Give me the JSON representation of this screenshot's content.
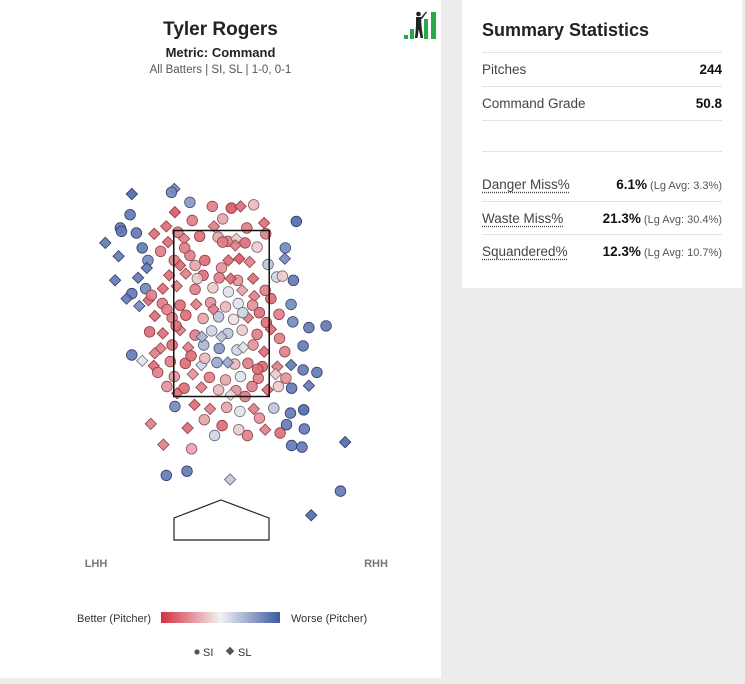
{
  "header": {
    "title": "Tyler Rogers",
    "metric": "Metric: Command",
    "filter": "All Batters | SI, SL | 1-0, 0-1"
  },
  "summary": {
    "title": "Summary Statistics",
    "rows": [
      {
        "label": "Pitches",
        "value": "244"
      },
      {
        "label": "Command Grade",
        "value": "50.8"
      }
    ],
    "miss_rows": [
      {
        "label": "Danger Miss%",
        "value": "6.1%",
        "avg": "(Lg Avg: 3.3%)"
      },
      {
        "label": "Waste Miss%",
        "value": "21.3%",
        "avg": "(Lg Avg: 30.4%)"
      },
      {
        "label": "Squandered%",
        "value": "12.3%",
        "avg": "(Lg Avg: 10.7%)"
      }
    ]
  },
  "colors": {
    "better": "#d32f3f",
    "neutral": "#f2f2f2",
    "worse": "#3b5aa4",
    "logo_green": "#29a847"
  },
  "chart_data": {
    "type": "scatter",
    "x_range": [
      -2.2,
      2.2
    ],
    "y_range": [
      -0.6,
      4.8
    ],
    "strike_zone": {
      "x": [
        -0.83,
        0.83
      ],
      "y": [
        1.5,
        3.5
      ]
    },
    "side_labels": {
      "left": "LHH",
      "right": "RHH"
    },
    "color_scale": {
      "low_label": "Better (Pitcher)",
      "high_label": "Worse (Pitcher)",
      "range": [
        -1,
        1
      ]
    },
    "legend": [
      {
        "name": "SI",
        "marker": "circle"
      },
      {
        "name": "SL",
        "marker": "diamond"
      }
    ],
    "pitches": [
      [
        -1.56,
        3.94,
        1,
        0.9
      ],
      [
        -0.82,
        4.0,
        1,
        0.7
      ],
      [
        -0.87,
        3.96,
        0,
        0.7
      ],
      [
        -1.76,
        3.53,
        0,
        0.8
      ],
      [
        -1.74,
        3.49,
        0,
        0.8
      ],
      [
        -0.55,
        3.84,
        0,
        0.6
      ],
      [
        -0.16,
        3.79,
        0,
        -0.6
      ],
      [
        0.17,
        3.77,
        0,
        -0.8
      ],
      [
        0.33,
        3.79,
        1,
        -0.7
      ],
      [
        0.56,
        3.81,
        0,
        -0.3
      ],
      [
        1.3,
        3.61,
        0,
        0.9
      ],
      [
        0.44,
        3.53,
        0,
        -0.6
      ],
      [
        -0.13,
        3.55,
        1,
        -0.6
      ],
      [
        0.74,
        3.59,
        1,
        -0.7
      ],
      [
        -0.76,
        3.48,
        0,
        -0.6
      ],
      [
        -0.93,
        3.36,
        1,
        -0.7
      ],
      [
        -0.65,
        3.4,
        1,
        -0.6
      ],
      [
        -0.38,
        3.43,
        0,
        -0.7
      ],
      [
        -0.06,
        3.42,
        0,
        -0.4
      ],
      [
        0.11,
        3.37,
        0,
        -0.6
      ],
      [
        0.41,
        3.35,
        0,
        -0.7
      ],
      [
        0.26,
        3.4,
        1,
        -0.2
      ],
      [
        0.77,
        3.46,
        0,
        -0.6
      ],
      [
        -2.02,
        3.35,
        1,
        0.8
      ],
      [
        -1.38,
        3.29,
        0,
        0.8
      ],
      [
        -1.06,
        3.25,
        0,
        -0.6
      ],
      [
        -1.28,
        3.14,
        0,
        0.7
      ],
      [
        -0.82,
        3.14,
        0,
        -0.6
      ],
      [
        -0.55,
        3.2,
        0,
        -0.6
      ],
      [
        -0.29,
        3.14,
        0,
        -0.7
      ],
      [
        0.12,
        3.14,
        1,
        -0.7
      ],
      [
        0.31,
        3.16,
        1,
        -0.8
      ],
      [
        -0.72,
        3.08,
        1,
        -0.7
      ],
      [
        -0.46,
        3.08,
        0,
        -0.4
      ],
      [
        0.0,
        3.05,
        0,
        -0.5
      ],
      [
        0.49,
        3.12,
        1,
        -0.6
      ],
      [
        0.81,
        3.09,
        0,
        0.3
      ],
      [
        1.1,
        3.16,
        1,
        0.7
      ],
      [
        -1.79,
        3.19,
        1,
        0.8
      ],
      [
        -0.91,
        2.96,
        1,
        -0.7
      ],
      [
        -0.62,
        2.98,
        1,
        -0.6
      ],
      [
        -0.32,
        2.96,
        0,
        -0.7
      ],
      [
        -0.04,
        2.93,
        0,
        -0.6
      ],
      [
        0.28,
        2.9,
        0,
        -0.5
      ],
      [
        0.55,
        2.92,
        1,
        -0.7
      ],
      [
        0.96,
        2.94,
        0,
        0.2
      ],
      [
        -1.02,
        2.8,
        1,
        -0.7
      ],
      [
        -0.78,
        2.83,
        1,
        -0.6
      ],
      [
        -0.46,
        2.79,
        0,
        -0.6
      ],
      [
        -0.15,
        2.81,
        0,
        -0.2
      ],
      [
        0.12,
        2.76,
        0,
        0.1
      ],
      [
        0.36,
        2.78,
        1,
        -0.4
      ],
      [
        0.57,
        2.71,
        1,
        -0.6
      ],
      [
        1.06,
        2.95,
        0,
        -0.2
      ],
      [
        1.25,
        2.9,
        0,
        0.8
      ],
      [
        -1.56,
        2.74,
        0,
        0.8
      ],
      [
        -1.32,
        2.8,
        0,
        0.7
      ],
      [
        -1.27,
        2.66,
        1,
        -0.7
      ],
      [
        -1.03,
        2.62,
        0,
        -0.6
      ],
      [
        -0.72,
        2.6,
        0,
        -0.7
      ],
      [
        -0.44,
        2.61,
        1,
        -0.6
      ],
      [
        -0.19,
        2.63,
        0,
        -0.5
      ],
      [
        0.07,
        2.58,
        0,
        -0.3
      ],
      [
        0.29,
        2.62,
        0,
        0.1
      ],
      [
        0.54,
        2.6,
        0,
        -0.5
      ],
      [
        0.86,
        2.68,
        0,
        -0.7
      ],
      [
        1.21,
        2.61,
        0,
        0.7
      ],
      [
        -1.65,
        2.68,
        1,
        0.8
      ],
      [
        -1.43,
        2.59,
        1,
        0.7
      ],
      [
        -1.16,
        2.47,
        1,
        -0.7
      ],
      [
        -0.86,
        2.45,
        0,
        -0.6
      ],
      [
        -0.62,
        2.48,
        0,
        -0.7
      ],
      [
        -0.32,
        2.44,
        0,
        -0.4
      ],
      [
        -0.05,
        2.46,
        0,
        0.3
      ],
      [
        0.21,
        2.43,
        0,
        -0.1
      ],
      [
        0.46,
        2.45,
        1,
        -0.6
      ],
      [
        0.78,
        2.39,
        0,
        -0.7
      ],
      [
        1.0,
        2.49,
        0,
        -0.6
      ],
      [
        -1.25,
        2.28,
        0,
        -0.7
      ],
      [
        -1.02,
        2.26,
        1,
        -0.7
      ],
      [
        -0.72,
        2.3,
        1,
        -0.6
      ],
      [
        -0.46,
        2.24,
        0,
        -0.6
      ],
      [
        -0.17,
        2.29,
        0,
        0.2
      ],
      [
        0.11,
        2.26,
        0,
        0.3
      ],
      [
        0.36,
        2.3,
        0,
        -0.2
      ],
      [
        0.62,
        2.25,
        0,
        -0.6
      ],
      [
        0.86,
        2.31,
        1,
        -0.7
      ],
      [
        1.52,
        2.33,
        0,
        0.8
      ],
      [
        1.82,
        2.35,
        0,
        0.8
      ],
      [
        -0.86,
        2.12,
        0,
        -0.7
      ],
      [
        -0.58,
        2.09,
        1,
        -0.6
      ],
      [
        -0.31,
        2.12,
        0,
        0.4
      ],
      [
        -0.04,
        2.08,
        0,
        0.6
      ],
      [
        0.27,
        2.06,
        0,
        0.2
      ],
      [
        0.55,
        2.12,
        0,
        -0.5
      ],
      [
        0.74,
        2.04,
        1,
        -0.7
      ],
      [
        1.1,
        2.04,
        0,
        -0.6
      ],
      [
        1.42,
        2.11,
        0,
        0.8
      ],
      [
        -1.56,
        2.0,
        0,
        0.8
      ],
      [
        -1.38,
        1.93,
        1,
        0.1
      ],
      [
        -1.18,
        1.87,
        1,
        -0.7
      ],
      [
        -0.89,
        1.92,
        0,
        -0.6
      ],
      [
        -0.63,
        1.9,
        0,
        -0.7
      ],
      [
        -0.35,
        1.88,
        1,
        0.2
      ],
      [
        -0.08,
        1.91,
        0,
        0.5
      ],
      [
        0.23,
        1.89,
        0,
        -0.3
      ],
      [
        0.46,
        1.9,
        0,
        -0.6
      ],
      [
        0.71,
        1.86,
        0,
        -0.7
      ],
      [
        0.97,
        1.86,
        1,
        -0.6
      ],
      [
        1.21,
        1.88,
        1,
        0.8
      ],
      [
        -1.11,
        1.79,
        0,
        -0.6
      ],
      [
        -0.82,
        1.74,
        0,
        -0.5
      ],
      [
        -0.5,
        1.77,
        1,
        -0.5
      ],
      [
        -0.21,
        1.73,
        0,
        -0.6
      ],
      [
        0.07,
        1.7,
        0,
        -0.4
      ],
      [
        0.33,
        1.74,
        0,
        0.1
      ],
      [
        0.64,
        1.72,
        0,
        -0.6
      ],
      [
        0.94,
        1.77,
        1,
        -0.2
      ],
      [
        1.66,
        1.79,
        0,
        0.8
      ],
      [
        -0.65,
        1.6,
        0,
        -0.7
      ],
      [
        -0.35,
        1.61,
        1,
        -0.6
      ],
      [
        -0.05,
        1.58,
        0,
        -0.3
      ],
      [
        0.25,
        1.57,
        0,
        -0.5
      ],
      [
        0.53,
        1.62,
        0,
        -0.6
      ],
      [
        0.8,
        1.58,
        1,
        -0.7
      ],
      [
        0.99,
        1.62,
        0,
        -0.2
      ],
      [
        1.22,
        1.6,
        0,
        0.8
      ],
      [
        1.52,
        1.63,
        1,
        0.8
      ],
      [
        -0.81,
        1.38,
        0,
        0.7
      ],
      [
        -0.47,
        1.4,
        1,
        -0.7
      ],
      [
        -0.2,
        1.35,
        1,
        -0.6
      ],
      [
        0.09,
        1.37,
        0,
        -0.4
      ],
      [
        0.32,
        1.32,
        0,
        0.1
      ],
      [
        0.56,
        1.35,
        1,
        -0.6
      ],
      [
        0.91,
        1.36,
        0,
        0.3
      ],
      [
        1.2,
        1.3,
        0,
        0.8
      ],
      [
        1.43,
        1.34,
        0,
        0.9
      ],
      [
        -1.23,
        1.17,
        1,
        -0.6
      ],
      [
        -0.59,
        1.12,
        1,
        -0.7
      ],
      [
        0.01,
        1.15,
        0,
        -0.7
      ],
      [
        0.3,
        1.1,
        0,
        -0.2
      ],
      [
        0.76,
        1.1,
        1,
        -0.6
      ],
      [
        1.02,
        1.06,
        0,
        -0.7
      ],
      [
        1.13,
        1.16,
        0,
        0.8
      ],
      [
        1.44,
        1.11,
        0,
        0.8
      ],
      [
        -1.01,
        0.92,
        1,
        -0.6
      ],
      [
        -0.52,
        0.87,
        0,
        -0.4
      ],
      [
        1.22,
        0.91,
        0,
        0.8
      ],
      [
        1.4,
        0.89,
        0,
        0.8
      ],
      [
        2.15,
        0.95,
        1,
        0.9
      ],
      [
        -0.96,
        0.55,
        0,
        0.8
      ],
      [
        -0.6,
        0.6,
        0,
        0.8
      ],
      [
        0.15,
        0.5,
        1,
        0.3
      ],
      [
        2.07,
        0.36,
        0,
        0.8
      ],
      [
        1.56,
        0.07,
        1,
        0.9
      ],
      [
        -1.59,
        3.69,
        0,
        0.8
      ],
      [
        -1.48,
        3.47,
        0,
        0.8
      ],
      [
        -1.3,
        3.05,
        1,
        0.8
      ],
      [
        -1.45,
        2.93,
        1,
        0.8
      ],
      [
        -1.85,
        2.9,
        1,
        0.8
      ],
      [
        -0.81,
        3.72,
        1,
        -0.8
      ],
      [
        -0.51,
        3.62,
        0,
        -0.6
      ],
      [
        0.02,
        3.64,
        0,
        -0.4
      ],
      [
        0.24,
        3.32,
        1,
        -0.6
      ],
      [
        -0.95,
        2.55,
        0,
        -0.6
      ],
      [
        -0.14,
        2.55,
        1,
        -0.6
      ],
      [
        0.37,
        2.51,
        0,
        0.2
      ],
      [
        0.66,
        2.51,
        0,
        -0.7
      ],
      [
        -0.34,
        2.22,
        1,
        0.4
      ],
      [
        0.0,
        2.22,
        1,
        0.3
      ],
      [
        0.38,
        2.09,
        1,
        0.1
      ],
      [
        -0.53,
        1.99,
        0,
        -0.7
      ],
      [
        0.11,
        1.91,
        1,
        0.5
      ],
      [
        -0.95,
        1.62,
        0,
        -0.5
      ],
      [
        -0.29,
        1.96,
        0,
        -0.3
      ],
      [
        0.16,
        1.52,
        1,
        -0.1
      ],
      [
        0.63,
        1.83,
        0,
        -0.7
      ],
      [
        1.12,
        1.72,
        0,
        -0.5
      ],
      [
        0.76,
        2.78,
        0,
        -0.6
      ],
      [
        -0.42,
        2.92,
        0,
        -0.2
      ],
      [
        0.16,
        2.92,
        1,
        -0.7
      ],
      [
        -0.64,
        3.29,
        0,
        -0.6
      ],
      [
        0.62,
        3.3,
        0,
        -0.2
      ],
      [
        -0.96,
        3.55,
        1,
        -0.7
      ],
      [
        0.02,
        3.36,
        0,
        -0.6
      ],
      [
        -1.06,
        2.08,
        1,
        -0.6
      ],
      [
        -0.77,
        1.54,
        1,
        -0.7
      ],
      [
        0.41,
        1.5,
        0,
        -0.6
      ],
      [
        -0.3,
        1.22,
        0,
        -0.4
      ],
      [
        0.66,
        1.24,
        0,
        -0.5
      ],
      [
        -0.12,
        1.03,
        0,
        0.2
      ],
      [
        0.45,
        1.03,
        0,
        -0.6
      ],
      [
        -0.79,
        2.35,
        0,
        -0.7
      ],
      [
        -1.17,
        3.46,
        1,
        -0.7
      ],
      [
        -1.22,
        2.72,
        0,
        -0.6
      ],
      [
        -1.16,
        2.02,
        1,
        -0.6
      ],
      [
        1.01,
        2.2,
        0,
        -0.6
      ],
      [
        1.42,
        1.82,
        0,
        0.8
      ],
      [
        1.24,
        2.4,
        0,
        0.7
      ],
      [
        1.11,
        3.29,
        0,
        0.7
      ]
    ]
  }
}
